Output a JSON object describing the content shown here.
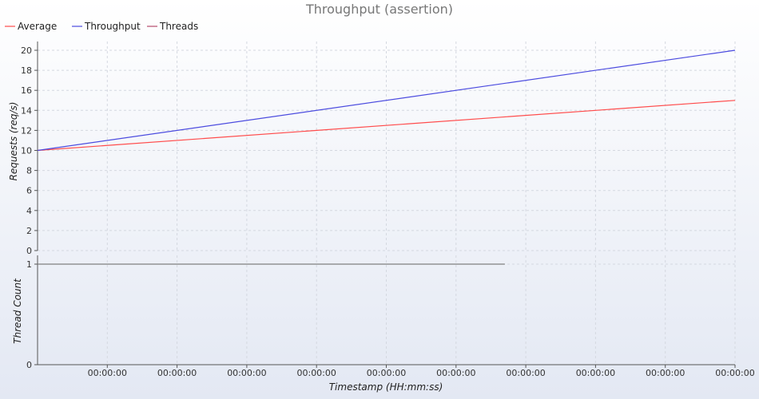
{
  "chart_data": {
    "type": "line",
    "title": "Throughput (assertion)",
    "legend": {
      "placement": "top-left",
      "entries": [
        {
          "name": "Average",
          "color": "#ff4b4b"
        },
        {
          "name": "Throughput",
          "color": "#4b4bdf"
        },
        {
          "name": "Threads",
          "color": "#b54b6b"
        }
      ]
    },
    "x": {
      "label": "Timestamp (HH:mm:ss)",
      "range": [
        0,
        10
      ],
      "tick_values": [
        1,
        2,
        3,
        4,
        5,
        6,
        7,
        8,
        9,
        10
      ],
      "tick_labels": [
        "00:00:00",
        "00:00:00",
        "00:00:00",
        "00:00:00",
        "00:00:00",
        "00:00:00",
        "00:00:00",
        "00:00:00",
        "00:00:00",
        "00:00:00"
      ]
    },
    "upper_panel": {
      "ylabel": "Requests (req/s)",
      "ylim": [
        0,
        21
      ],
      "yticks": [
        0,
        2,
        4,
        6,
        8,
        10,
        12,
        14,
        16,
        18,
        20
      ],
      "grid": true,
      "series": [
        {
          "name": "Average",
          "color": "#ff4b4b",
          "x": [
            0,
            10
          ],
          "y": [
            10,
            15
          ]
        },
        {
          "name": "Throughput",
          "color": "#4b4bdf",
          "x": [
            0,
            10
          ],
          "y": [
            10,
            20
          ]
        }
      ]
    },
    "lower_panel": {
      "ylabel": "Thread Count",
      "ylim": [
        0,
        1
      ],
      "yticks": [
        0,
        1
      ],
      "grid": true,
      "series": [
        {
          "name": "Threads",
          "color": "#808080",
          "x": [
            0,
            6.7
          ],
          "y": [
            1,
            1
          ]
        }
      ]
    }
  }
}
